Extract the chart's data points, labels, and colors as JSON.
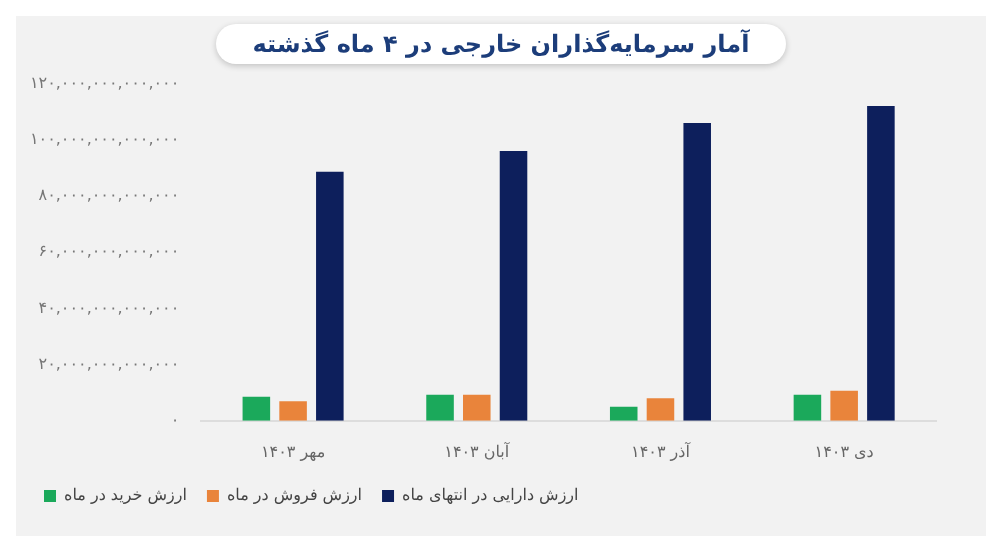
{
  "chart_data": {
    "type": "bar",
    "title": "آمار سرمایه‌گذاران خارجی در ۴ ماه گذشته",
    "categories": [
      "مهر ۱۴۰۳",
      "آبان ۱۴۰۳",
      "آذر ۱۴۰۳",
      "دی ۱۴۰۳"
    ],
    "series": [
      {
        "name": "ارزش خرید در ماه",
        "color": "#1ba95b",
        "values": [
          8600000000000,
          9300000000000,
          5000000000000,
          9300000000000
        ]
      },
      {
        "name": "ارزش فروش در ماه",
        "color": "#e9843b",
        "values": [
          7000000000000,
          9300000000000,
          8000000000000,
          10700000000000
        ]
      },
      {
        "name": "ارزش دارایی در انتهای ماه",
        "color": "#0d1f5c",
        "values": [
          88600000000000,
          96000000000000,
          106000000000000,
          112000000000000
        ]
      }
    ],
    "ylim": [
      0,
      120000000000000
    ],
    "yticks": [
      {
        "value": 0,
        "label": "۰"
      },
      {
        "value": 20000000000000,
        "label": "۲۰,۰۰۰,۰۰۰,۰۰۰,۰۰۰"
      },
      {
        "value": 40000000000000,
        "label": "۴۰,۰۰۰,۰۰۰,۰۰۰,۰۰۰"
      },
      {
        "value": 60000000000000,
        "label": "۶۰,۰۰۰,۰۰۰,۰۰۰,۰۰۰"
      },
      {
        "value": 80000000000000,
        "label": "۸۰,۰۰۰,۰۰۰,۰۰۰,۰۰۰"
      },
      {
        "value": 100000000000000,
        "label": "۱۰۰,۰۰۰,۰۰۰,۰۰۰,۰۰۰"
      },
      {
        "value": 120000000000000,
        "label": "۱۲۰,۰۰۰,۰۰۰,۰۰۰,۰۰۰"
      }
    ],
    "legend": "bottom left"
  }
}
